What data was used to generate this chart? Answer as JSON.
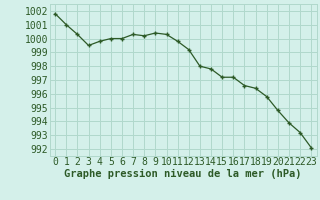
{
  "x": [
    0,
    1,
    2,
    3,
    4,
    5,
    6,
    7,
    8,
    9,
    10,
    11,
    12,
    13,
    14,
    15,
    16,
    17,
    18,
    19,
    20,
    21,
    22,
    23
  ],
  "y": [
    1001.8,
    1001.0,
    1000.3,
    999.5,
    999.8,
    1000.0,
    1000.0,
    1000.3,
    1000.2,
    1000.4,
    1000.3,
    999.8,
    999.2,
    998.0,
    997.8,
    997.2,
    997.2,
    996.6,
    996.4,
    995.8,
    994.8,
    993.9,
    993.2,
    992.1
  ],
  "bg_color": "#d4f0ea",
  "grid_color": "#b0d8cc",
  "line_color": "#2d5a27",
  "marker_color": "#2d5a27",
  "ylabel_ticks": [
    992,
    993,
    994,
    995,
    996,
    997,
    998,
    999,
    1000,
    1001,
    1002
  ],
  "ylim": [
    991.5,
    1002.5
  ],
  "xlim": [
    -0.5,
    23.5
  ],
  "xlabel": "Graphe pression niveau de la mer (hPa)",
  "xlabel_fontsize": 7.5,
  "tick_fontsize": 7.0
}
